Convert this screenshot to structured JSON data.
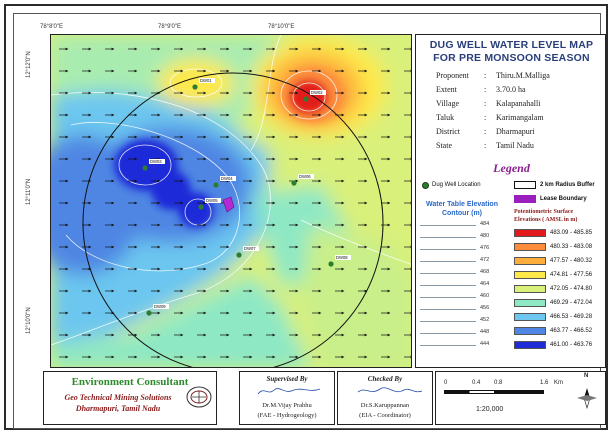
{
  "map": {
    "top_labels": [
      "78°8'0\"E",
      "78°9'0\"E",
      "78°10'0\"E"
    ],
    "left_labels": [
      "12°12'0\"N",
      "12°11'0\"N",
      "12°10'0\"N"
    ],
    "wells": [
      {
        "id": "DW01",
        "label": "DW01"
      },
      {
        "id": "DW02",
        "label": "DW02"
      },
      {
        "id": "DW03",
        "label": "DW03"
      },
      {
        "id": "DW04",
        "label": "DW04"
      },
      {
        "id": "DW05",
        "label": "DW05"
      },
      {
        "id": "DW06",
        "label": "DW06"
      },
      {
        "id": "DW07",
        "label": "DW07"
      },
      {
        "id": "DW08",
        "label": "DW08"
      },
      {
        "id": "DW09",
        "label": "DW09"
      },
      {
        "id": "DW10",
        "label": "DW10"
      }
    ]
  },
  "panel": {
    "title_line1": "DUG WELL WATER LEVEL MAP",
    "title_line2": "FOR PRE MONSOON SEASON",
    "info": [
      {
        "k": "Proponent",
        "v": "Thiru.M.Malliga"
      },
      {
        "k": "Extent",
        "v": "3.70.0 ha"
      },
      {
        "k": "Village",
        "v": "Kalapanahalli"
      },
      {
        "k": "Taluk",
        "v": "Karimangalam"
      },
      {
        "k": "District",
        "v": "Dharmapuri"
      },
      {
        "k": "State",
        "v": "Tamil Nadu"
      }
    ],
    "colon": ":",
    "legend_title": "Legend",
    "dug_well_location": "Dug Well Location",
    "radius_buffer": "2 km Radius Buffer",
    "lease_boundary": "Lease Boundary",
    "contour_title1": "Water Table Elevation",
    "contour_title2": "Contour (m)",
    "contours": [
      "484",
      "480",
      "476",
      "472",
      "468",
      "464",
      "460",
      "456",
      "452",
      "448",
      "444"
    ],
    "surface_title1": "Potentiometric Surface",
    "surface_title2": "Elevations ( AMSL in m)",
    "ranges": [
      {
        "label": "483.09 - 485.85",
        "color": "#e31a1c"
      },
      {
        "label": "480.33 - 483.08",
        "color": "#fd8d3c"
      },
      {
        "label": "477.57 - 480.32",
        "color": "#fdae3c"
      },
      {
        "label": "474.81 - 477.56",
        "color": "#fee94a"
      },
      {
        "label": "472.05 - 474.80",
        "color": "#d9f07a"
      },
      {
        "label": "469.29 - 472.04",
        "color": "#8ee8c4"
      },
      {
        "label": "466.53 - 469.28",
        "color": "#6cc6ef"
      },
      {
        "label": "463.77 - 466.52",
        "color": "#4f86e3"
      },
      {
        "label": "461.00 - 463.76",
        "color": "#1e2cd8"
      }
    ]
  },
  "footer": {
    "ec_title": "Environment Consultant",
    "ec_line1": "Geo Technical Mining Solutions",
    "ec_line2": "Dharmapuri, Tamil Nadu",
    "sup_header": "Supervised By",
    "sup_name": "Dr.M.Vijay Prabhu",
    "sup_role": "(FAE - Hydrogeology)",
    "chk_header": "Checked By",
    "chk_name": "Dr.S.Karuppannan",
    "chk_role": "(EIA - Coordinator)",
    "scale_ticks": [
      "0",
      "0.4",
      "0.8",
      "1.6"
    ],
    "scale_unit": "Km",
    "scale_ratio": "1:20,000",
    "north": "N"
  }
}
